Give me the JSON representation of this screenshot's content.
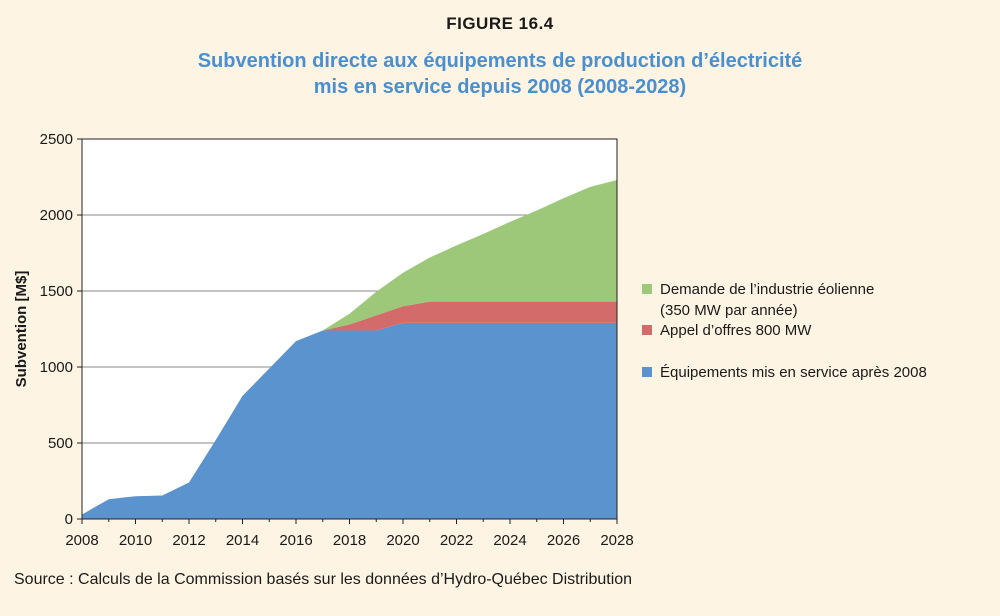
{
  "figure_label": "FIGURE 16.4",
  "title_line1": "Subvention directe aux équipements de production d’électricité",
  "title_line2": "mis en service depuis 2008 (2008-2028)",
  "source": "Source : Calculs de la Commission basés sur les données d’Hydro-Québec Distribution",
  "chart_data": {
    "type": "area",
    "stacked": true,
    "ylabel": "Subvention [M$]",
    "xlabel": "",
    "xlim": [
      2008,
      2028
    ],
    "ylim": [
      0,
      2500
    ],
    "x_ticks": [
      2008,
      2010,
      2012,
      2014,
      2016,
      2018,
      2020,
      2022,
      2024,
      2026,
      2028
    ],
    "y_ticks": [
      0,
      500,
      1000,
      1500,
      2000,
      2500
    ],
    "grid": "horizontal",
    "legend_position": "right",
    "x": [
      2008,
      2009,
      2010,
      2011,
      2012,
      2013,
      2014,
      2015,
      2016,
      2017,
      2018,
      2019,
      2020,
      2021,
      2022,
      2023,
      2024,
      2025,
      2026,
      2027,
      2028
    ],
    "series": [
      {
        "name": "Équipements mis en service après 2008",
        "color": "#5b93cf",
        "values": [
          30,
          130,
          150,
          155,
          240,
          520,
          810,
          990,
          1170,
          1240,
          1240,
          1240,
          1290,
          1290,
          1290,
          1290,
          1290,
          1290,
          1290,
          1290,
          1290
        ]
      },
      {
        "name": "Appel d’offres 800 MW",
        "color": "#d36b6b",
        "values": [
          0,
          0,
          0,
          0,
          0,
          0,
          0,
          0,
          0,
          0,
          40,
          100,
          110,
          140,
          140,
          140,
          140,
          140,
          140,
          140,
          140
        ]
      },
      {
        "name": "Demande de l’industrie éolienne",
        "name_line2": "(350 MW par année)",
        "color": "#9dc87a",
        "values": [
          0,
          0,
          0,
          0,
          0,
          0,
          0,
          0,
          0,
          0,
          70,
          155,
          220,
          290,
          370,
          445,
          525,
          600,
          680,
          755,
          800
        ]
      }
    ]
  }
}
